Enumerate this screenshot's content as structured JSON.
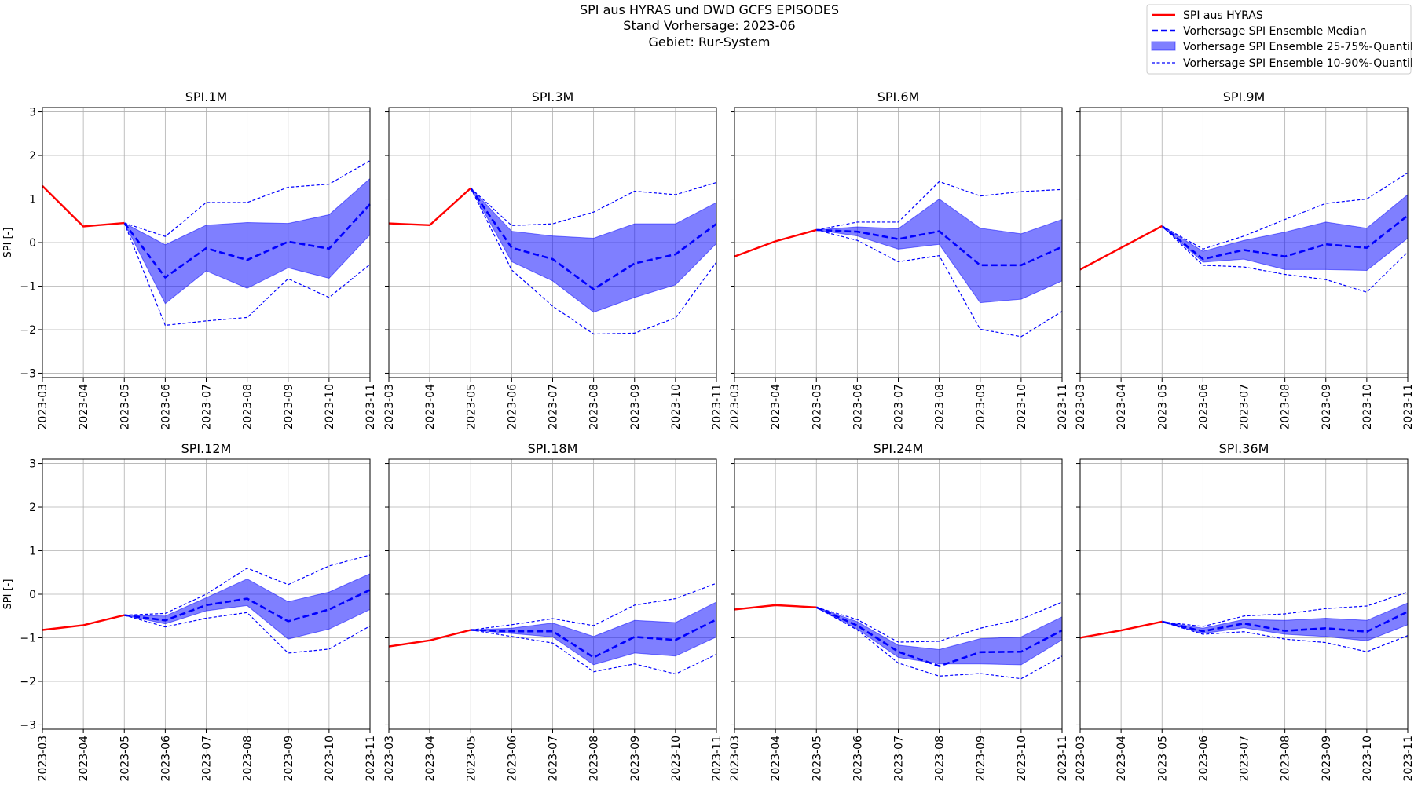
{
  "title_lines": [
    "SPI aus HYRAS und DWD GCFS EPISODES",
    "Stand Vorhersage: 2023-06",
    "Gebiet: Rur-System"
  ],
  "legend": {
    "observed": "SPI aus HYRAS",
    "median": "Vorhersage SPI Ensemble Median",
    "band_25_75": "Vorhersage SPI Ensemble 25-75%-Quantil",
    "band_10_90": "Vorhersage SPI Ensemble 10-90%-Quantil"
  },
  "colors": {
    "observed": "#ff0000",
    "forecast": "#0000ff",
    "band_fill": "#0000ff",
    "grid": "#b0b0b0"
  },
  "chart_data": {
    "type": "line",
    "ylabel": "SPI [-]",
    "ylim": [
      -3.1,
      3.1
    ],
    "yticks": [
      -3,
      -2,
      -1,
      0,
      1,
      2,
      3
    ],
    "x": [
      "2023-03",
      "2023-04",
      "2023-05",
      "2023-06",
      "2023-07",
      "2023-08",
      "2023-09",
      "2023-10",
      "2023-11"
    ],
    "grid": true,
    "legend_position": "top-right",
    "panels": [
      {
        "title": "SPI.1M",
        "observed": [
          1.3,
          0.37,
          0.45
        ],
        "median": [
          0.45,
          -0.8,
          -0.13,
          -0.4,
          0.02,
          -0.14,
          0.88
        ],
        "q25": [
          0.45,
          -1.4,
          -0.65,
          -1.05,
          -0.58,
          -0.82,
          0.18
        ],
        "q75": [
          0.45,
          -0.05,
          0.4,
          0.46,
          0.44,
          0.64,
          1.47
        ],
        "q10": [
          0.45,
          -1.9,
          -1.8,
          -1.72,
          -0.83,
          -1.26,
          -0.5
        ],
        "q90": [
          0.45,
          0.14,
          0.92,
          0.92,
          1.27,
          1.34,
          1.88
        ]
      },
      {
        "title": "SPI.3M",
        "observed": [
          0.44,
          0.4,
          1.25
        ],
        "median": [
          1.25,
          -0.12,
          -0.38,
          -1.07,
          -0.48,
          -0.27,
          0.43
        ],
        "q25": [
          1.25,
          -0.44,
          -0.88,
          -1.6,
          -1.26,
          -0.97,
          -0.02
        ],
        "q75": [
          1.25,
          0.26,
          0.15,
          0.1,
          0.43,
          0.43,
          0.92
        ],
        "q10": [
          1.25,
          -0.63,
          -1.46,
          -2.1,
          -2.08,
          -1.73,
          -0.45
        ],
        "q90": [
          1.25,
          0.39,
          0.43,
          0.7,
          1.18,
          1.1,
          1.38
        ]
      },
      {
        "title": "SPI.6M",
        "observed": [
          -0.32,
          0.03,
          0.29
        ],
        "median": [
          0.29,
          0.25,
          0.08,
          0.26,
          -0.52,
          -0.52,
          -0.1
        ],
        "q25": [
          0.29,
          0.15,
          -0.15,
          -0.04,
          -1.38,
          -1.3,
          -0.88
        ],
        "q75": [
          0.29,
          0.36,
          0.32,
          1.0,
          0.33,
          0.2,
          0.53
        ],
        "q10": [
          0.29,
          0.05,
          -0.44,
          -0.3,
          -1.99,
          -2.16,
          -1.58
        ],
        "q90": [
          0.29,
          0.47,
          0.47,
          1.4,
          1.07,
          1.17,
          1.22
        ]
      },
      {
        "title": "SPI.9M",
        "observed": [
          -0.62,
          -0.12,
          0.38
        ],
        "median": [
          0.38,
          -0.38,
          -0.17,
          -0.32,
          -0.04,
          -0.12,
          0.62
        ],
        "q25": [
          0.38,
          -0.45,
          -0.38,
          -0.62,
          -0.62,
          -0.64,
          0.1
        ],
        "q75": [
          0.38,
          -0.2,
          0.05,
          0.24,
          0.47,
          0.33,
          1.1
        ],
        "q10": [
          0.38,
          -0.52,
          -0.56,
          -0.73,
          -0.85,
          -1.14,
          -0.22
        ],
        "q90": [
          0.38,
          -0.15,
          0.15,
          0.53,
          0.9,
          1.0,
          1.6
        ]
      },
      {
        "title": "SPI.12M",
        "observed": [
          -0.82,
          -0.71,
          -0.48
        ],
        "median": [
          -0.48,
          -0.6,
          -0.25,
          -0.1,
          -0.62,
          -0.35,
          0.1
        ],
        "q25": [
          -0.48,
          -0.68,
          -0.38,
          -0.26,
          -1.03,
          -0.8,
          -0.35
        ],
        "q75": [
          -0.48,
          -0.5,
          -0.08,
          0.35,
          -0.17,
          0.05,
          0.47
        ],
        "q10": [
          -0.48,
          -0.75,
          -0.55,
          -0.42,
          -1.35,
          -1.26,
          -0.73
        ],
        "q90": [
          -0.48,
          -0.44,
          0.0,
          0.6,
          0.22,
          0.65,
          0.9
        ]
      },
      {
        "title": "SPI.18M",
        "observed": [
          -1.2,
          -1.06,
          -0.82
        ],
        "median": [
          -0.82,
          -0.85,
          -0.85,
          -1.45,
          -0.98,
          -1.05,
          -0.58
        ],
        "q25": [
          -0.82,
          -0.9,
          -0.98,
          -1.62,
          -1.35,
          -1.42,
          -0.98
        ],
        "q75": [
          -0.82,
          -0.78,
          -0.66,
          -0.97,
          -0.6,
          -0.65,
          -0.18
        ],
        "q10": [
          -0.82,
          -0.97,
          -1.12,
          -1.78,
          -1.6,
          -1.83,
          -1.38
        ],
        "q90": [
          -0.82,
          -0.7,
          -0.56,
          -0.72,
          -0.25,
          -0.1,
          0.25
        ]
      },
      {
        "title": "SPI.24M",
        "observed": [
          -0.35,
          -0.25,
          -0.3
        ],
        "median": [
          -0.3,
          -0.72,
          -1.32,
          -1.65,
          -1.33,
          -1.32,
          -0.83
        ],
        "q25": [
          -0.3,
          -0.8,
          -1.45,
          -1.6,
          -1.6,
          -1.62,
          -1.05
        ],
        "q75": [
          -0.3,
          -0.63,
          -1.17,
          -1.27,
          -1.02,
          -0.98,
          -0.52
        ],
        "q10": [
          -0.3,
          -0.82,
          -1.58,
          -1.88,
          -1.82,
          -1.94,
          -1.42
        ],
        "q90": [
          -0.3,
          -0.58,
          -1.1,
          -1.08,
          -0.78,
          -0.57,
          -0.18
        ]
      },
      {
        "title": "SPI.36M",
        "observed": [
          -1.0,
          -0.83,
          -0.63
        ],
        "median": [
          -0.63,
          -0.85,
          -0.67,
          -0.84,
          -0.78,
          -0.86,
          -0.4
        ],
        "q25": [
          -0.63,
          -0.9,
          -0.77,
          -0.92,
          -0.97,
          -1.07,
          -0.7
        ],
        "q75": [
          -0.63,
          -0.78,
          -0.58,
          -0.6,
          -0.55,
          -0.6,
          -0.2
        ],
        "q10": [
          -0.63,
          -0.92,
          -0.86,
          -1.03,
          -1.11,
          -1.32,
          -0.95
        ],
        "q90": [
          -0.63,
          -0.74,
          -0.5,
          -0.45,
          -0.33,
          -0.27,
          0.05
        ]
      }
    ]
  }
}
